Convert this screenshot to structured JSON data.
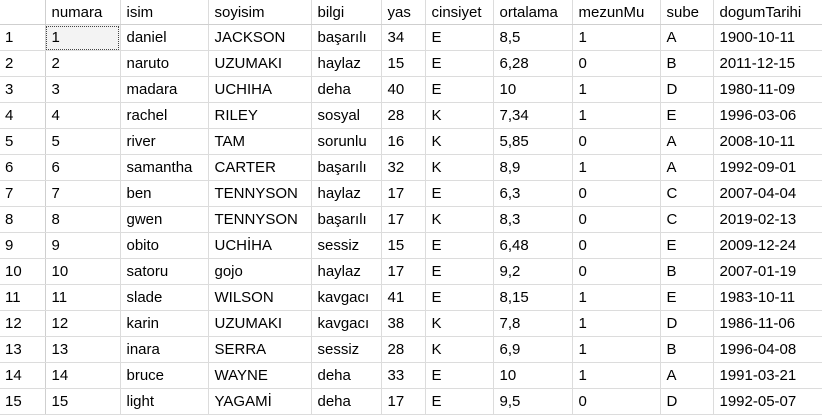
{
  "grid": {
    "columns": [
      "",
      "numara",
      "isim",
      "soyisim",
      "bilgi",
      "yas",
      "cinsiyet",
      "ortalama",
      "mezunMu",
      "sube",
      "dogumTarihi"
    ],
    "rows": [
      [
        "1",
        "1",
        "daniel",
        "JACKSON",
        "başarılı",
        "34",
        "E",
        "8,5",
        "1",
        "A",
        "1900-10-11"
      ],
      [
        "2",
        "2",
        "naruto",
        "UZUMAKI",
        "haylaz",
        "15",
        "E",
        "6,28",
        "0",
        "B",
        "2011-12-15"
      ],
      [
        "3",
        "3",
        "madara",
        "UCHIHA",
        "deha",
        "40",
        "E",
        "10",
        "1",
        "D",
        "1980-11-09"
      ],
      [
        "4",
        "4",
        "rachel",
        "RILEY",
        "sosyal",
        "28",
        "K",
        "7,34",
        "1",
        "E",
        "1996-03-06"
      ],
      [
        "5",
        "5",
        "river",
        "TAM",
        "sorunlu",
        "16",
        "K",
        "5,85",
        "0",
        "A",
        "2008-10-11"
      ],
      [
        "6",
        "6",
        "samantha",
        "CARTER",
        "başarılı",
        "32",
        "K",
        "8,9",
        "1",
        "A",
        "1992-09-01"
      ],
      [
        "7",
        "7",
        "ben",
        "TENNYSON",
        "haylaz",
        "17",
        "E",
        "6,3",
        "0",
        "C",
        "2007-04-04"
      ],
      [
        "8",
        "8",
        "gwen",
        "TENNYSON",
        "başarılı",
        "17",
        "K",
        "8,3",
        "0",
        "C",
        "2019-02-13"
      ],
      [
        "9",
        "9",
        "obito",
        "UCHİHA",
        "sessiz",
        "15",
        "E",
        "6,48",
        "0",
        "E",
        "2009-12-24"
      ],
      [
        "10",
        "10",
        "satoru",
        "gojo",
        "haylaz",
        "17",
        "E",
        "9,2",
        "0",
        "B",
        "2007-01-19"
      ],
      [
        "11",
        "11",
        "slade",
        "WILSON",
        "kavgacı",
        "41",
        "E",
        "8,15",
        "1",
        "E",
        "1983-10-11"
      ],
      [
        "12",
        "12",
        "karin",
        "UZUMAKI",
        "kavgacı",
        "38",
        "K",
        "7,8",
        "1",
        "D",
        "1986-11-06"
      ],
      [
        "13",
        "13",
        "inara",
        "SERRA",
        "sessiz",
        "28",
        "K",
        "6,9",
        "1",
        "B",
        "1996-04-08"
      ],
      [
        "14",
        "14",
        "bruce",
        "WAYNE",
        "deha",
        "33",
        "E",
        "10",
        "1",
        "A",
        "1991-03-21"
      ],
      [
        "15",
        "15",
        "light",
        "YAGAMİ",
        "deha",
        "17",
        "E",
        "9,5",
        "0",
        "D",
        "1992-05-07"
      ]
    ]
  }
}
